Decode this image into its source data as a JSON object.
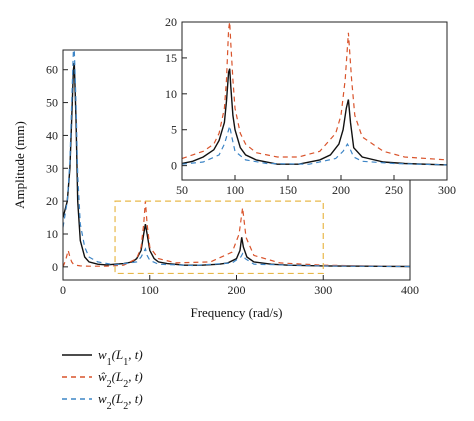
{
  "chart_data": [
    {
      "type": "line",
      "role": "main",
      "xlabel": "Frequency (rad/s)",
      "ylabel": "Amplitude (mm)",
      "xlim": [
        0,
        400
      ],
      "ylim": [
        -4,
        66
      ],
      "xticks": [
        "0",
        "100",
        "200",
        "300",
        "400"
      ],
      "yticks": [
        "0",
        "10",
        "20",
        "30",
        "40",
        "50",
        "60"
      ],
      "grid": false,
      "series": [
        {
          "color": "#111111",
          "dash": "solid",
          "x": [
            0,
            5,
            8,
            10,
            12,
            13,
            15,
            17,
            20,
            25,
            30,
            40,
            50,
            60,
            70,
            80,
            85,
            90,
            93,
            95,
            97,
            100,
            105,
            110,
            120,
            140,
            160,
            180,
            190,
            200,
            204,
            206,
            208,
            212,
            220,
            240,
            260,
            300,
            350,
            400
          ],
          "y": [
            15,
            20,
            30,
            45,
            60,
            62,
            45,
            20,
            8,
            3,
            1.5,
            0.8,
            0.6,
            0.8,
            1.0,
            1.5,
            2.5,
            5,
            10,
            13,
            10,
            5,
            2.5,
            1.5,
            1.0,
            0.5,
            0.5,
            0.8,
            1.2,
            2.5,
            5,
            9,
            6,
            3,
            1.5,
            0.8,
            0.5,
            0.3,
            0.2,
            0.1
          ]
        },
        {
          "color": "#d9542c",
          "dash": "5,4",
          "x": [
            0,
            3,
            6,
            8,
            10,
            12,
            15,
            20,
            30,
            50,
            70,
            85,
            90,
            93,
            95,
            97,
            100,
            110,
            130,
            170,
            195,
            203,
            207,
            211,
            220,
            250,
            300,
            400
          ],
          "y": [
            0,
            2,
            5,
            3,
            1.5,
            0.8,
            0.5,
            0.3,
            0.2,
            0.2,
            0.5,
            2.5,
            6,
            13,
            20,
            13,
            6,
            2.5,
            1.2,
            1.5,
            4.5,
            10,
            18,
            9,
            3.5,
            1.2,
            0.5,
            0.1
          ]
        },
        {
          "color": "#3d85c6",
          "dash": "5,4",
          "x": [
            0,
            5,
            8,
            10,
            12,
            13,
            15,
            17,
            20,
            25,
            30,
            40,
            60,
            85,
            90,
            93,
            95,
            97,
            100,
            110,
            150,
            195,
            205,
            207,
            210,
            220,
            300,
            400
          ],
          "y": [
            12,
            20,
            32,
            50,
            66,
            66,
            50,
            28,
            13,
            6,
            3,
            1.5,
            0.6,
            1.5,
            3,
            4.5,
            5.5,
            3.5,
            2,
            0.8,
            0.4,
            1.2,
            3,
            4,
            2.5,
            0.8,
            0.3,
            0.1
          ]
        }
      ],
      "zoom_box": {
        "x": [
          60,
          300
        ],
        "y": [
          -2,
          20
        ],
        "color": "#e8b84a"
      }
    },
    {
      "type": "line",
      "role": "inset",
      "xlim": [
        50,
        300
      ],
      "ylim": [
        -2,
        20
      ],
      "xticks": [
        "50",
        "100",
        "150",
        "200",
        "250",
        "300"
      ],
      "yticks": [
        "0",
        "5",
        "10",
        "15",
        "20"
      ],
      "grid": false,
      "series": [
        {
          "color": "#111111",
          "dash": "solid",
          "x": [
            50,
            60,
            70,
            80,
            85,
            90,
            92,
            94,
            95,
            96,
            98,
            100,
            105,
            110,
            120,
            140,
            160,
            180,
            190,
            198,
            202,
            205,
            207,
            209,
            212,
            220,
            240,
            260,
            300
          ],
          "y": [
            0.3,
            0.6,
            1.2,
            2.2,
            3.5,
            6,
            9,
            13,
            13.5,
            11,
            7,
            5,
            2.5,
            1.5,
            0.8,
            0.2,
            0.2,
            0.8,
            1.5,
            3,
            5,
            8,
            9.2,
            6,
            2.5,
            1.2,
            0.5,
            0.3,
            0.1
          ]
        },
        {
          "color": "#d9542c",
          "dash": "5,4",
          "x": [
            50,
            60,
            70,
            80,
            85,
            90,
            92,
            94,
            95,
            96,
            98,
            100,
            105,
            110,
            120,
            140,
            160,
            180,
            195,
            200,
            204,
            207,
            210,
            213,
            220,
            240,
            260,
            300
          ],
          "y": [
            1,
            1.5,
            2,
            3,
            4.5,
            8,
            12,
            19,
            20,
            17,
            12,
            8,
            4.5,
            3,
            1.8,
            1.2,
            1.2,
            2,
            4.5,
            7,
            12,
            18.5,
            12,
            7,
            4,
            2,
            1.2,
            0.8
          ]
        },
        {
          "color": "#3d85c6",
          "dash": "5,4",
          "x": [
            50,
            70,
            85,
            90,
            93,
            95,
            97,
            100,
            110,
            130,
            170,
            195,
            202,
            206,
            208,
            212,
            220,
            250,
            300
          ],
          "y": [
            0.2,
            0.5,
            1.5,
            3,
            4.5,
            5.5,
            4,
            2,
            0.8,
            0.3,
            0.2,
            1.0,
            2.0,
            3.0,
            2.5,
            1.2,
            0.6,
            0.3,
            0.1
          ]
        }
      ]
    }
  ],
  "legend": {
    "items": [
      {
        "label_base": "w",
        "sub": "1",
        "suffix": "(L",
        "sub2": "1",
        "tail": ", t)",
        "color": "#111111",
        "dash": "solid"
      },
      {
        "label_base": "ŵ",
        "sub": "2",
        "suffix": "(L",
        "sub2": "2",
        "tail": ", t)",
        "color": "#d9542c",
        "dash": "5,4"
      },
      {
        "label_base": "w",
        "sub": "2",
        "suffix": "(L",
        "sub2": "2",
        "tail": ", t)",
        "color": "#3d85c6",
        "dash": "5,4"
      }
    ]
  }
}
